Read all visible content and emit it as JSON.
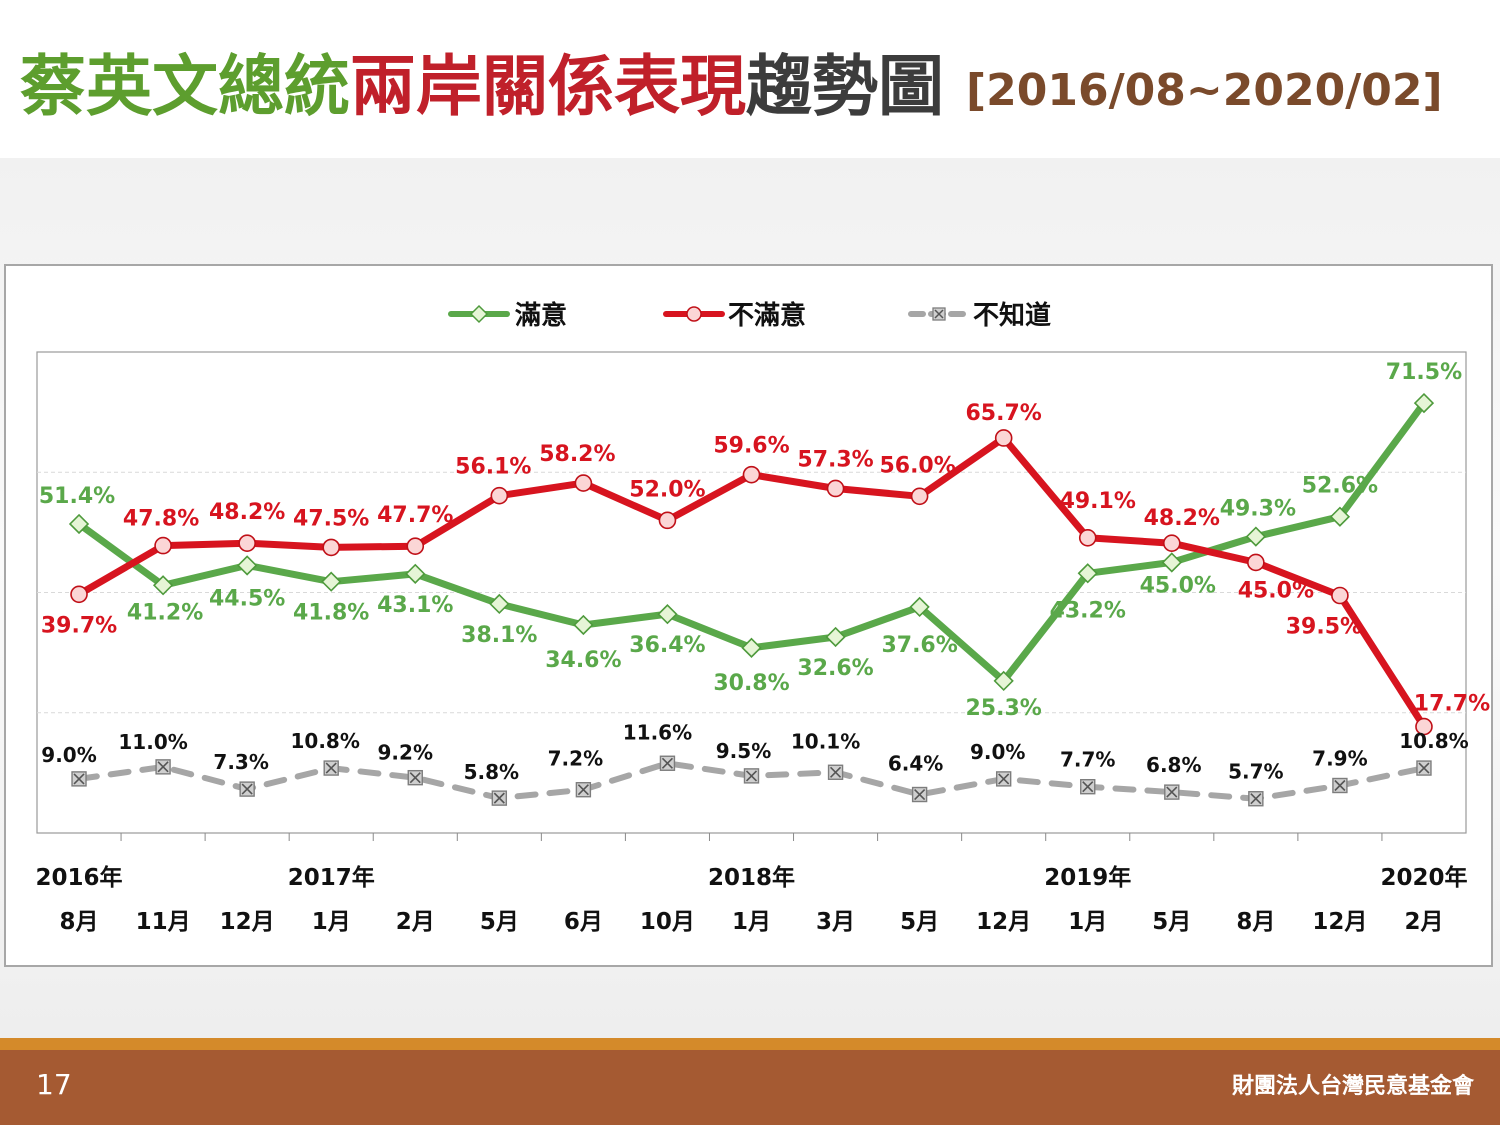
{
  "slide": {
    "title_part1": "蔡英文總統",
    "title_part2": "兩岸關係表現",
    "title_part3": "趨勢圖",
    "title_range": "[2016/08~2020/02]",
    "page_number": "17",
    "organization": "財團法人台灣民意基金會"
  },
  "chart_data": {
    "type": "line",
    "categories": [
      "8月",
      "11月",
      "12月",
      "1月",
      "2月",
      "5月",
      "6月",
      "10月",
      "1月",
      "3月",
      "5月",
      "12月",
      "1月",
      "5月",
      "8月",
      "12月",
      "2月"
    ],
    "year_labels": [
      {
        "index": 0,
        "label": "2016年"
      },
      {
        "index": 3,
        "label": "2017年"
      },
      {
        "index": 8,
        "label": "2018年"
      },
      {
        "index": 12,
        "label": "2019年"
      },
      {
        "index": 16,
        "label": "2020年"
      }
    ],
    "series": [
      {
        "name": "滿意",
        "color": "#5aa84a",
        "marker": "diamond",
        "values": [
          51.4,
          41.2,
          44.5,
          41.8,
          43.1,
          38.1,
          34.6,
          36.4,
          30.8,
          32.6,
          37.6,
          25.3,
          43.2,
          45.0,
          49.3,
          52.6,
          71.5
        ],
        "labels": [
          "51.4%",
          "41.2%",
          "44.5%",
          "41.8%",
          "43.1%",
          "38.1%",
          "34.6%",
          "36.4%",
          "30.8%",
          "32.6%",
          "37.6%",
          "25.3%",
          "43.2%",
          "45.0%",
          "49.3%",
          "52.6%",
          "71.5%"
        ]
      },
      {
        "name": "不滿意",
        "color": "#d7141f",
        "marker": "circle",
        "values": [
          39.7,
          47.8,
          48.2,
          47.5,
          47.7,
          56.1,
          58.2,
          52.0,
          59.6,
          57.3,
          56.0,
          65.7,
          49.1,
          48.2,
          45.0,
          39.5,
          17.7
        ],
        "labels": [
          "39.7%",
          "47.8%",
          "48.2%",
          "47.5%",
          "47.7%",
          "56.1%",
          "58.2%",
          "52.0%",
          "59.6%",
          "57.3%",
          "56.0%",
          "65.7%",
          "49.1%",
          "48.2%",
          "45.0%",
          "39.5%",
          "17.7%"
        ]
      },
      {
        "name": "不知道",
        "color": "#a6a6a6",
        "marker": "x-square",
        "values": [
          9.0,
          11.0,
          7.3,
          10.8,
          9.2,
          5.8,
          7.2,
          11.6,
          9.5,
          10.1,
          6.4,
          9.0,
          7.7,
          6.8,
          5.7,
          7.9,
          10.8
        ],
        "labels": [
          "9.0%",
          "11.0%",
          "7.3%",
          "10.8%",
          "9.2%",
          "5.8%",
          "7.2%",
          "11.6%",
          "9.5%",
          "10.1%",
          "6.4%",
          "9.0%",
          "7.7%",
          "6.8%",
          "5.7%",
          "7.9%",
          "10.8%"
        ]
      }
    ],
    "ylim": [
      0,
      80
    ],
    "grid": "horizontal",
    "legend": "top-center"
  }
}
